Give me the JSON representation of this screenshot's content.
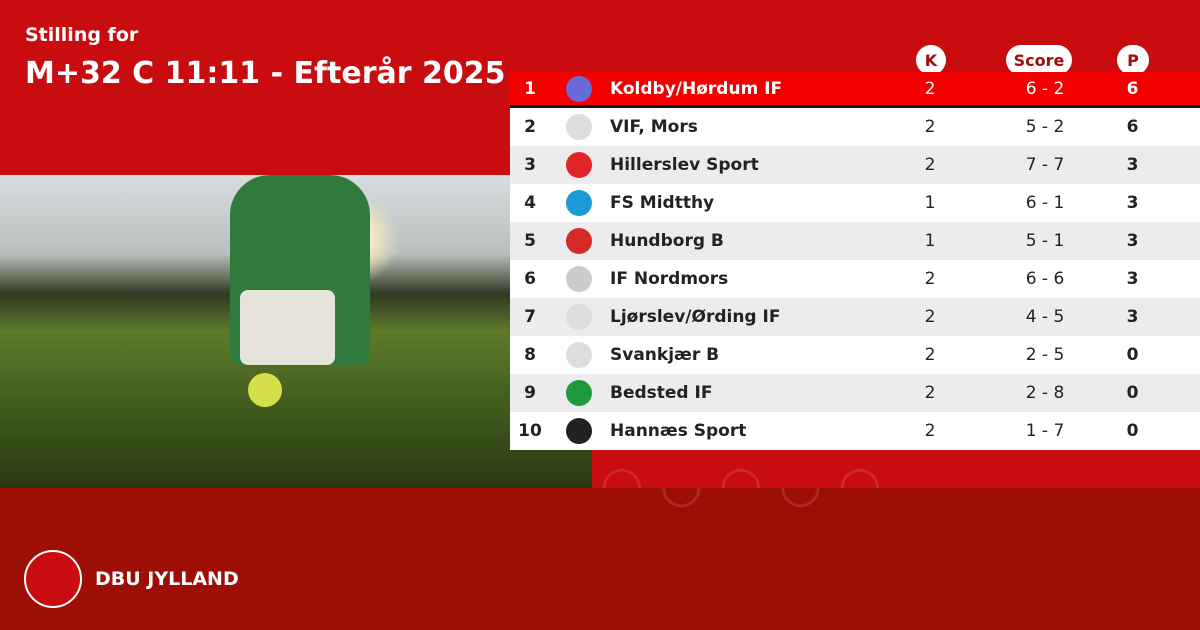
{
  "header": {
    "subtitle": "Stilling for",
    "title": "M+32 C 11:11 - Efterår 2025"
  },
  "columns": {
    "k": "K",
    "score": "Score",
    "p": "P"
  },
  "rows": [
    {
      "pos": "1",
      "team": "Koldby/Hørdum IF",
      "k": "2",
      "score": "6 - 2",
      "p": "6",
      "logo_color": "#6a6ad8"
    },
    {
      "pos": "2",
      "team": "VIF, Mors",
      "k": "2",
      "score": "5 - 2",
      "p": "6",
      "logo_color": "#dddddd"
    },
    {
      "pos": "3",
      "team": "Hillerslev Sport",
      "k": "2",
      "score": "7 - 7",
      "p": "3",
      "logo_color": "#e0242a"
    },
    {
      "pos": "4",
      "team": "FS Midtthy",
      "k": "1",
      "score": "6 - 1",
      "p": "3",
      "logo_color": "#1a9ad6"
    },
    {
      "pos": "5",
      "team": "Hundborg B",
      "k": "1",
      "score": "5 - 1",
      "p": "3",
      "logo_color": "#d62a2a"
    },
    {
      "pos": "6",
      "team": "IF Nordmors",
      "k": "2",
      "score": "6 - 6",
      "p": "3",
      "logo_color": "#cccccc"
    },
    {
      "pos": "7",
      "team": "Ljørslev/Ørding IF",
      "k": "2",
      "score": "4 - 5",
      "p": "3",
      "logo_color": "#dddddd"
    },
    {
      "pos": "8",
      "team": "Svankjær B",
      "k": "2",
      "score": "2 - 5",
      "p": "0",
      "logo_color": "#dddddd"
    },
    {
      "pos": "9",
      "team": "Bedsted IF",
      "k": "2",
      "score": "2 - 8",
      "p": "0",
      "logo_color": "#1e9a3e"
    },
    {
      "pos": "10",
      "team": "Hannæs Sport",
      "k": "2",
      "score": "1 - 7",
      "p": "0",
      "logo_color": "#222222"
    }
  ],
  "footer": {
    "brand": "DBU JYLLAND",
    "logo_text": "DBU"
  },
  "colors": {
    "background": "#c80c0f",
    "leader_row": "#f20000",
    "footer": "#9c0e06"
  }
}
